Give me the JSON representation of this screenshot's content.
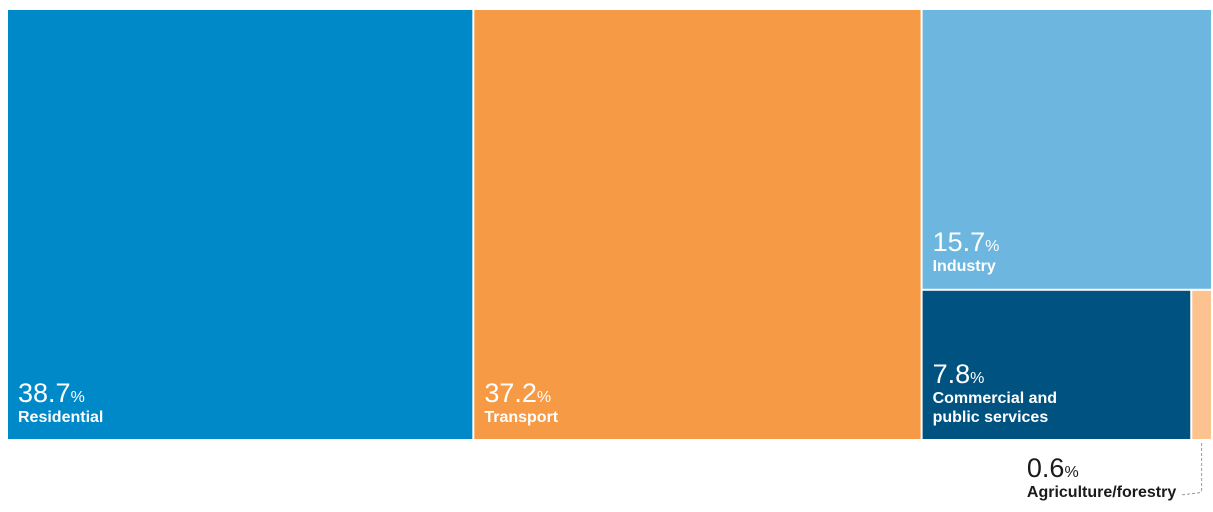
{
  "chart_data": {
    "type": "treemap",
    "unit": "%",
    "categories": [
      "Residential",
      "Transport",
      "Industry",
      "Commercial and public services",
      "Agriculture/forestry"
    ],
    "values": [
      38.7,
      37.2,
      15.7,
      7.8,
      0.6
    ],
    "colors": [
      "#0089c9",
      "#f69a45",
      "#6db6e0",
      "#005380",
      "#fcc28f"
    ]
  }
}
